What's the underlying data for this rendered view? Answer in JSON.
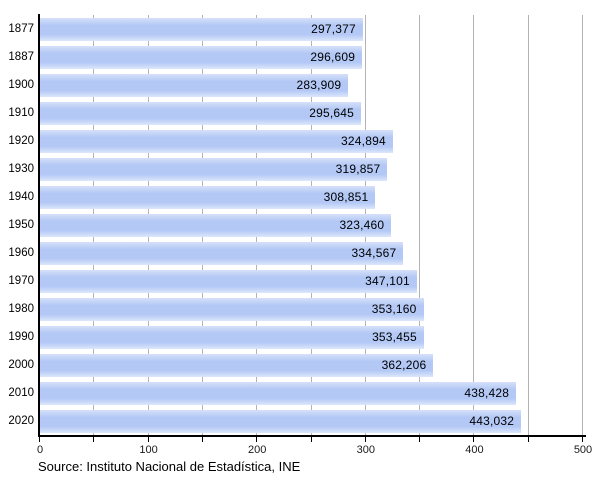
{
  "chart_data": {
    "type": "bar",
    "orientation": "horizontal",
    "title": "",
    "xlabel": "",
    "ylabel": "",
    "categories": [
      "1877",
      "1887",
      "1900",
      "1910",
      "1920",
      "1930",
      "1940",
      "1950",
      "1960",
      "1970",
      "1980",
      "1990",
      "2000",
      "2010",
      "2020"
    ],
    "values": [
      297377,
      296609,
      283909,
      295645,
      324894,
      319857,
      308851,
      323460,
      334567,
      347101,
      353160,
      353455,
      362206,
      438428,
      443032
    ],
    "value_labels": [
      "297,377",
      "296,609",
      "283,909",
      "295,645",
      "324,894",
      "319,857",
      "308,851",
      "323,460",
      "334,567",
      "347,101",
      "353,160",
      "353,455",
      "362,206",
      "438,428",
      "443,032"
    ],
    "xlim": [
      0,
      500
    ],
    "axis_value_divisor": 1000,
    "x_major_step": 100,
    "x_minor_step": 50,
    "x_tick_labels": [
      "0",
      "100",
      "200",
      "300",
      "400",
      "500"
    ],
    "grid": "vertical gridlines every 50 units, full height, light gray",
    "legend": "none",
    "bar_color": "#b3c8f5",
    "bar_highlight_color": "#d6e0fa",
    "bar_bottom_fade_color": "#dde7fb",
    "grid_color": "#b3b3b3",
    "axis_color": "#000000",
    "value_label_color": "#000000"
  },
  "source": {
    "text": "Source: Instituto Nacional de Estadística, INE"
  }
}
